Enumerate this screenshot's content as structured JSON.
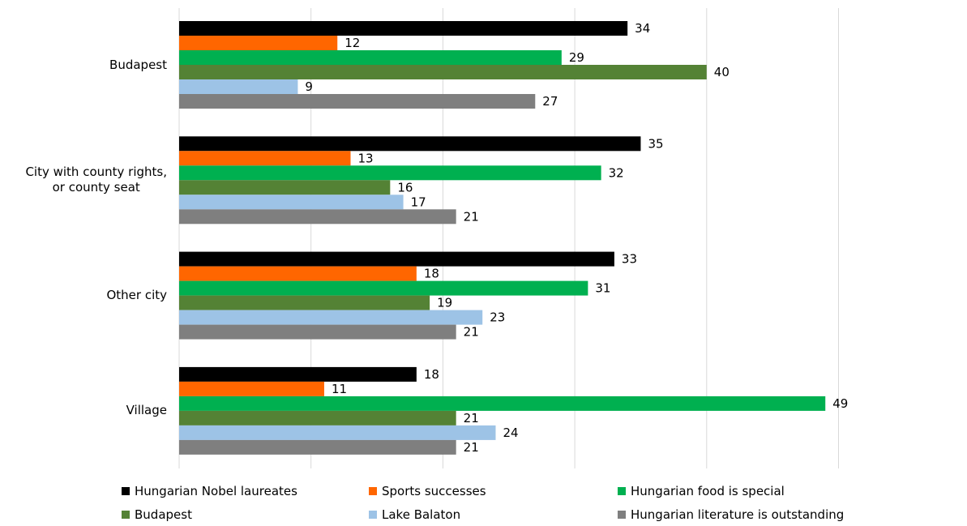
{
  "chart_data": {
    "type": "bar",
    "orientation": "horizontal",
    "categories": [
      "Budapest",
      "City with county rights,\nor  county seat",
      "Other city",
      "Village"
    ],
    "series": [
      {
        "name": "Hungarian Nobel laureates",
        "color": "#000000",
        "values": [
          34,
          35,
          33,
          18
        ]
      },
      {
        "name": "Sports successes",
        "color": "#FF6600",
        "values": [
          12,
          13,
          18,
          11
        ]
      },
      {
        "name": "Hungarian food is special",
        "color": "#00B050",
        "values": [
          29,
          32,
          31,
          49
        ]
      },
      {
        "name": "Budapest",
        "color": "#548235",
        "values": [
          40,
          16,
          19,
          21
        ]
      },
      {
        "name": "Lake Balaton",
        "color": "#9DC3E6",
        "values": [
          9,
          17,
          23,
          24
        ]
      },
      {
        "name": "Hungarian literature is outstanding",
        "color": "#7F7F7F",
        "values": [
          27,
          21,
          21,
          21
        ]
      }
    ],
    "xlim": [
      0,
      60
    ],
    "gridlines": true,
    "legend_position": "bottom",
    "data_labels": true
  }
}
